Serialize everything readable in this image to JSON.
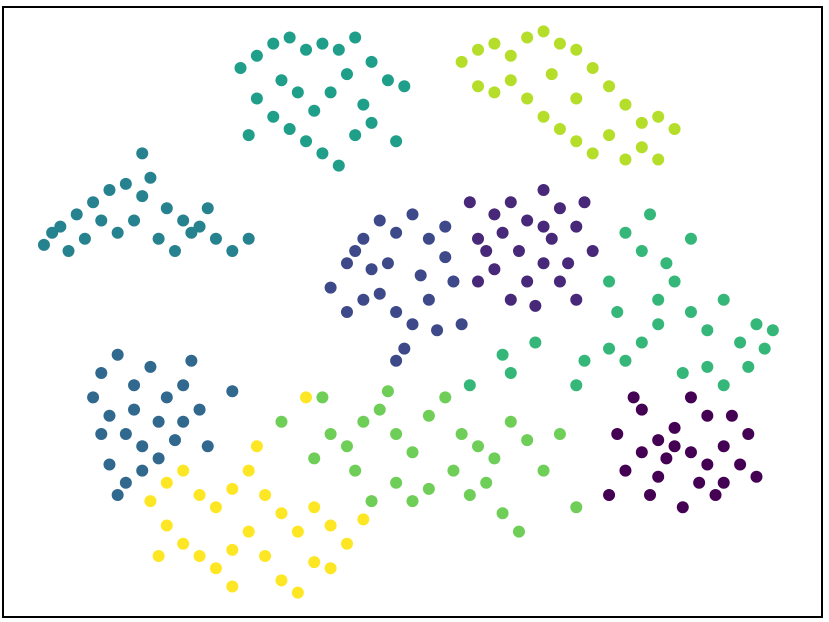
{
  "chart_data": {
    "type": "scatter",
    "xlim": [
      0,
      100
    ],
    "ylim": [
      0,
      100
    ],
    "series": [
      {
        "color": "#440154",
        "x": [
          75,
          78,
          80,
          82,
          84,
          86,
          88,
          90,
          85,
          83,
          79,
          76,
          81,
          87,
          91,
          77,
          84,
          89,
          80,
          86,
          74,
          82,
          78,
          88,
          92
        ],
        "values": [
          30,
          34,
          29,
          31,
          27,
          33,
          28,
          25,
          22,
          18,
          20,
          24,
          26,
          20,
          30,
          36,
          36,
          33,
          23,
          25,
          20,
          28,
          27,
          22,
          23
        ]
      },
      {
        "color": "#482878",
        "x": [
          58,
          60,
          62,
          64,
          66,
          68,
          70,
          72,
          66,
          64,
          62,
          60,
          58,
          68,
          70,
          63,
          67,
          61,
          65,
          69,
          57,
          71,
          59,
          66
        ],
        "values": [
          62,
          66,
          68,
          65,
          70,
          67,
          64,
          60,
          58,
          55,
          52,
          57,
          55,
          55,
          52,
          60,
          62,
          63,
          51,
          58,
          68,
          68,
          60,
          64
        ]
      },
      {
        "color": "#3e4989",
        "x": [
          42,
          44,
          46,
          48,
          50,
          52,
          54,
          55,
          52,
          50,
          48,
          46,
          44,
          42,
          40,
          47,
          51,
          45,
          53,
          49,
          56,
          43,
          48,
          54
        ],
        "values": [
          58,
          62,
          65,
          63,
          66,
          62,
          59,
          55,
          52,
          48,
          50,
          53,
          52,
          50,
          54,
          58,
          56,
          57,
          47,
          44,
          48,
          60,
          42,
          64
        ]
      },
      {
        "color": "#31688e",
        "x": [
          12,
          14,
          16,
          18,
          20,
          22,
          24,
          13,
          15,
          17,
          19,
          21,
          13,
          15,
          17,
          12,
          23,
          25,
          16,
          19,
          14,
          22,
          28,
          11
        ],
        "values": [
          40,
          43,
          38,
          41,
          36,
          38,
          34,
          33,
          30,
          28,
          32,
          29,
          25,
          22,
          24,
          30,
          42,
          28,
          34,
          26,
          20,
          32,
          37,
          36
        ]
      },
      {
        "color": "#26828e",
        "x": [
          5,
          7,
          9,
          11,
          13,
          15,
          17,
          18,
          20,
          22,
          24,
          26,
          28,
          30,
          8,
          10,
          12,
          14,
          16,
          19,
          21,
          23,
          17,
          6,
          25
        ],
        "values": [
          61,
          64,
          66,
          68,
          70,
          71,
          69,
          72,
          67,
          65,
          64,
          62,
          60,
          62,
          60,
          62,
          65,
          63,
          65,
          62,
          60,
          63,
          76,
          63,
          67
        ]
      },
      {
        "color": "#1f9e89",
        "x": [
          29,
          31,
          33,
          35,
          37,
          39,
          41,
          43,
          45,
          47,
          49,
          31,
          33,
          35,
          37,
          39,
          41,
          43,
          45,
          36,
          40,
          34,
          38,
          44,
          42,
          30,
          48
        ],
        "values": [
          90,
          92,
          94,
          95,
          93,
          94,
          93,
          95,
          91,
          88,
          87,
          85,
          82,
          80,
          78,
          76,
          74,
          79,
          81,
          86,
          86,
          88,
          83,
          84,
          89,
          79,
          78
        ]
      },
      {
        "color": "#35b779",
        "x": [
          76,
          78,
          80,
          82,
          84,
          86,
          88,
          90,
          92,
          94,
          74,
          76,
          78,
          80,
          83,
          86,
          88,
          91,
          93,
          75,
          81,
          84,
          79,
          71,
          65,
          62,
          70,
          57,
          61,
          74
        ],
        "values": [
          63,
          60,
          52,
          55,
          50,
          47,
          52,
          45,
          48,
          47,
          44,
          42,
          45,
          48,
          40,
          41,
          38,
          41,
          44,
          50,
          58,
          62,
          66,
          42,
          45,
          40,
          38,
          38,
          43,
          55
        ]
      },
      {
        "color": "#6ece58",
        "x": [
          40,
          42,
          44,
          46,
          48,
          50,
          52,
          54,
          56,
          58,
          60,
          62,
          64,
          66,
          70,
          48,
          50,
          52,
          55,
          57,
          59,
          61,
          63,
          45,
          43,
          38,
          34,
          39,
          47,
          68
        ],
        "values": [
          30,
          28,
          32,
          34,
          30,
          27,
          33,
          36,
          30,
          28,
          26,
          32,
          29,
          24,
          18,
          22,
          19,
          21,
          24,
          20,
          22,
          17,
          14,
          19,
          24,
          26,
          32,
          36,
          37,
          30
        ]
      },
      {
        "color": "#b5de2b",
        "x": [
          56,
          58,
          60,
          62,
          64,
          66,
          68,
          70,
          72,
          74,
          76,
          78,
          80,
          82,
          60,
          62,
          64,
          66,
          68,
          70,
          72,
          74,
          76,
          78,
          58,
          67,
          80,
          70
        ],
        "values": [
          91,
          93,
          94,
          92,
          95,
          96,
          94,
          93,
          90,
          87,
          84,
          81,
          82,
          80,
          86,
          88,
          85,
          82,
          80,
          78,
          76,
          79,
          75,
          77,
          87,
          89,
          75,
          85
        ]
      },
      {
        "color": "#fde725",
        "x": [
          18,
          20,
          22,
          24,
          26,
          28,
          30,
          32,
          34,
          36,
          38,
          40,
          42,
          22,
          24,
          26,
          28,
          30,
          32,
          34,
          36,
          38,
          40,
          20,
          28,
          31,
          37,
          44,
          19
        ],
        "values": [
          19,
          22,
          24,
          20,
          18,
          21,
          24,
          20,
          17,
          14,
          18,
          15,
          12,
          12,
          10,
          8,
          11,
          14,
          10,
          6,
          4,
          9,
          8,
          15,
          5,
          28,
          36,
          16,
          10
        ]
      }
    ]
  }
}
